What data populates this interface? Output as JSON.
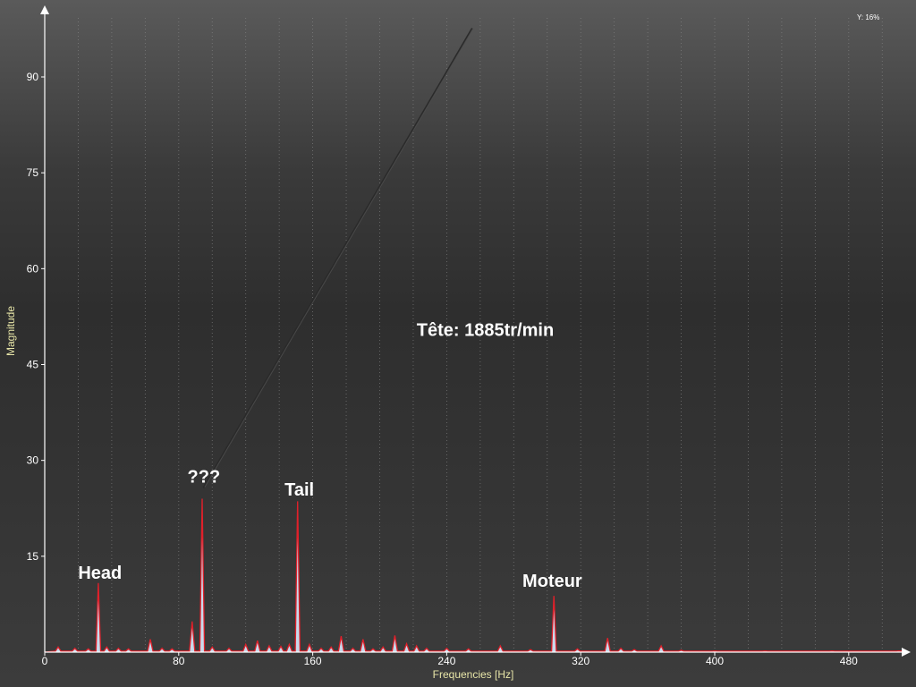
{
  "chart_data": {
    "type": "area",
    "xlabel": "Frequencies [Hz]",
    "ylabel": "Magnitude",
    "xlim": [
      0,
      512
    ],
    "ylim": [
      0,
      100
    ],
    "x_ticks": [
      "0",
      "80",
      "160",
      "240",
      "320",
      "400",
      "480"
    ],
    "y_ticks": [
      "0",
      "15",
      "30",
      "45",
      "60",
      "75",
      "90"
    ],
    "grid": true,
    "zoom_label": "Y: 16%",
    "colors": {
      "line": "#e0202a",
      "fill": "#cfe3f5",
      "grid": "#8a8a8a",
      "axis": "#ffffff"
    },
    "peaks": [
      {
        "x": 8,
        "y": 0.8
      },
      {
        "x": 18,
        "y": 0.6
      },
      {
        "x": 26,
        "y": 0.5
      },
      {
        "x": 32,
        "y": 10.8
      },
      {
        "x": 37,
        "y": 0.8
      },
      {
        "x": 44,
        "y": 0.6
      },
      {
        "x": 50,
        "y": 0.5
      },
      {
        "x": 63,
        "y": 2.0
      },
      {
        "x": 70,
        "y": 0.6
      },
      {
        "x": 76,
        "y": 0.5
      },
      {
        "x": 88,
        "y": 4.8
      },
      {
        "x": 94,
        "y": 24.0
      },
      {
        "x": 100,
        "y": 0.8
      },
      {
        "x": 110,
        "y": 0.6
      },
      {
        "x": 120,
        "y": 1.2
      },
      {
        "x": 127,
        "y": 1.8
      },
      {
        "x": 134,
        "y": 1.0
      },
      {
        "x": 141,
        "y": 0.9
      },
      {
        "x": 146,
        "y": 1.2
      },
      {
        "x": 151,
        "y": 23.6
      },
      {
        "x": 158,
        "y": 1.2
      },
      {
        "x": 165,
        "y": 0.6
      },
      {
        "x": 171,
        "y": 0.8
      },
      {
        "x": 177,
        "y": 2.5
      },
      {
        "x": 184,
        "y": 0.6
      },
      {
        "x": 190,
        "y": 2.0
      },
      {
        "x": 196,
        "y": 0.5
      },
      {
        "x": 202,
        "y": 0.8
      },
      {
        "x": 209,
        "y": 2.6
      },
      {
        "x": 216,
        "y": 1.3
      },
      {
        "x": 222,
        "y": 1.0
      },
      {
        "x": 228,
        "y": 0.6
      },
      {
        "x": 240,
        "y": 0.6
      },
      {
        "x": 253,
        "y": 0.5
      },
      {
        "x": 272,
        "y": 1.0
      },
      {
        "x": 290,
        "y": 0.4
      },
      {
        "x": 304,
        "y": 8.8
      },
      {
        "x": 318,
        "y": 0.5
      },
      {
        "x": 336,
        "y": 2.2
      },
      {
        "x": 344,
        "y": 0.6
      },
      {
        "x": 352,
        "y": 0.4
      },
      {
        "x": 368,
        "y": 1.0
      },
      {
        "x": 380,
        "y": 0.3
      },
      {
        "x": 400,
        "y": 0.2
      },
      {
        "x": 430,
        "y": 0.2
      },
      {
        "x": 470,
        "y": 0.2
      },
      {
        "x": 510,
        "y": 0.2
      }
    ],
    "annotations": [
      {
        "text": "Head",
        "x": 33,
        "y": 11.5
      },
      {
        "text": "???",
        "x": 95,
        "y": 26.5
      },
      {
        "text": "Tail",
        "x": 152,
        "y": 24.5
      },
      {
        "text": "Moteur",
        "x": 303,
        "y": 10.2
      },
      {
        "text": "Tête: 1885tr/min",
        "x": 263,
        "y": 49.5
      }
    ],
    "arrow": {
      "from": [
        95,
        25.8
      ],
      "to": [
        255,
        97.5
      ]
    }
  }
}
